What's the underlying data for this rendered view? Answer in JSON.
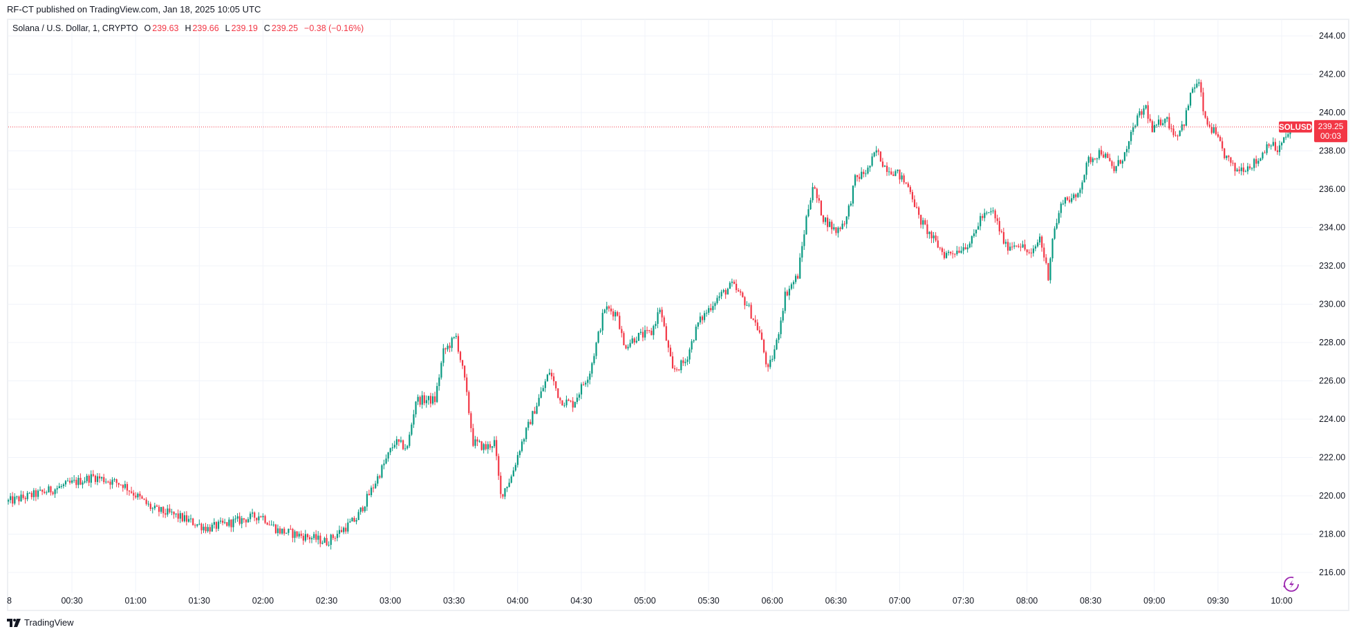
{
  "published": "RF-CT published on TradingView.com, Jan 18, 2025 10:05 UTC",
  "legend": {
    "symbol": "Solana / U.S. Dollar, 1, CRYPTO",
    "o_label": "O",
    "o": "239.63",
    "h_label": "H",
    "h": "239.66",
    "l_label": "L",
    "l": "239.19",
    "c_label": "C",
    "c": "239.25",
    "change": "−0.38 (−0.16%)"
  },
  "last_price": {
    "ticker": "SOLUSD",
    "price": "239.25",
    "countdown": "00:03"
  },
  "footer_brand": "TradingView",
  "colors": {
    "up": "#089981",
    "down": "#f23645",
    "grid": "#f0f3fa",
    "accent": "#9c27b0"
  },
  "chart_data": {
    "type": "candlestick",
    "symbol": "SOLUSD",
    "interval_minutes": 1,
    "ylim": [
      215,
      245
    ],
    "y_ticks": [
      "244.00",
      "242.00",
      "240.00",
      "238.00",
      "236.00",
      "234.00",
      "232.00",
      "230.00",
      "228.00",
      "226.00",
      "224.00",
      "222.00",
      "220.00",
      "218.00",
      "216.00"
    ],
    "x_ticks": [
      "8",
      "00:30",
      "01:00",
      "01:30",
      "02:00",
      "02:30",
      "03:00",
      "03:30",
      "04:00",
      "04:30",
      "05:00",
      "05:30",
      "06:00",
      "06:30",
      "07:00",
      "07:30",
      "08:00",
      "08:30",
      "09:00",
      "09:30",
      "10:00"
    ],
    "x_tick_minutes": [
      0,
      30,
      60,
      90,
      120,
      150,
      180,
      210,
      240,
      270,
      300,
      330,
      360,
      390,
      420,
      450,
      480,
      510,
      540,
      570,
      600
    ],
    "last_close": 239.25,
    "price_path_minutes": [
      0,
      17,
      40,
      54,
      68,
      78,
      94,
      119,
      127,
      143,
      150,
      164,
      172,
      182,
      188,
      192,
      201,
      205,
      211,
      215,
      219,
      225,
      229,
      232,
      237,
      241,
      248,
      255,
      260,
      266,
      274,
      281,
      287,
      290,
      296,
      303,
      307,
      313,
      319,
      325,
      333,
      341,
      348,
      354,
      358,
      362,
      366,
      372,
      376,
      379,
      384,
      390,
      395,
      399,
      405,
      409,
      413,
      419,
      425,
      429,
      435,
      441,
      447,
      454,
      458,
      464,
      470,
      476,
      482,
      486,
      490,
      492,
      497,
      503,
      509,
      515,
      521,
      527,
      531,
      536,
      539,
      545,
      550,
      554,
      558,
      561,
      564,
      568,
      573,
      578,
      584,
      589,
      594,
      598,
      605
    ],
    "price_path_values": [
      219.7,
      220.2,
      221.0,
      220.6,
      219.3,
      219.0,
      218.3,
      219.0,
      218.2,
      217.8,
      217.6,
      218.8,
      220.5,
      222.8,
      222.5,
      225.0,
      225.0,
      227.5,
      228.3,
      226.0,
      222.8,
      222.5,
      222.8,
      220.0,
      221.0,
      222.5,
      224.5,
      226.5,
      225.0,
      224.8,
      226.5,
      229.8,
      229.5,
      227.8,
      228.3,
      228.5,
      229.8,
      226.5,
      227.0,
      229.0,
      230.2,
      231.0,
      230.0,
      228.5,
      226.5,
      228.0,
      230.5,
      231.5,
      234.5,
      236.2,
      234.5,
      233.8,
      234.5,
      236.5,
      237.0,
      238.0,
      237.2,
      236.8,
      236.0,
      234.5,
      233.5,
      232.6,
      232.8,
      233.3,
      234.5,
      234.8,
      233.0,
      233.2,
      232.5,
      233.5,
      231.5,
      233.5,
      235.5,
      235.5,
      237.5,
      238.0,
      237.0,
      238.0,
      239.5,
      240.3,
      239.0,
      239.8,
      238.8,
      239.5,
      241.3,
      241.5,
      239.5,
      239.0,
      237.8,
      237.0,
      237.2,
      237.5,
      238.5,
      238.0,
      239.25
    ]
  }
}
